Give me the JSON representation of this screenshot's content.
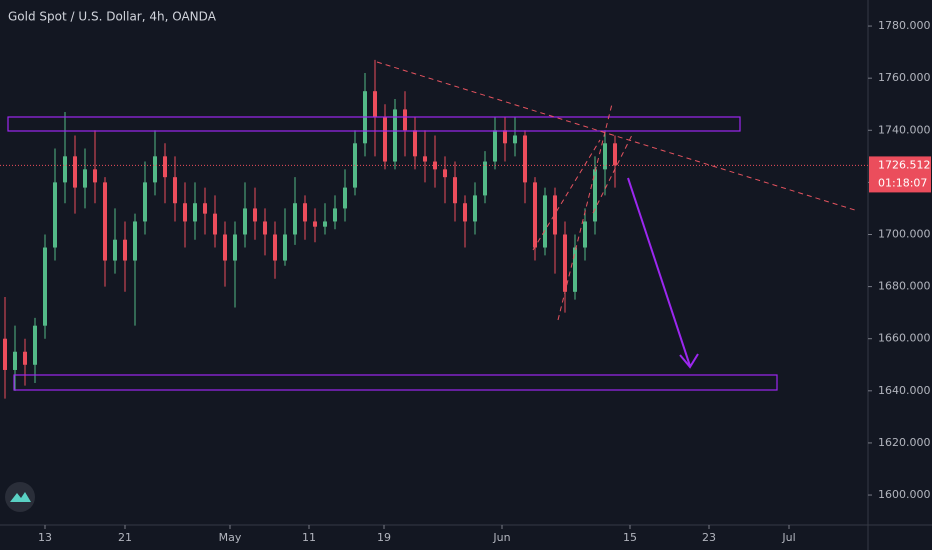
{
  "chart_data": {
    "type": "candlestick",
    "title": "Gold Spot / U.S. Dollar, 4h, OANDA",
    "up_color": "#53b987",
    "down_color": "#eb4d5c",
    "open": [
      1660,
      1648,
      1655,
      1650,
      1665,
      1695,
      1720,
      1730,
      1718,
      1725,
      1720,
      1690,
      1698,
      1690,
      1705,
      1720,
      1730,
      1722,
      1712,
      1705,
      1712,
      1708,
      1700,
      1690,
      1700,
      1710,
      1705,
      1700,
      1690,
      1700,
      1712,
      1705,
      1703,
      1705,
      1710,
      1718,
      1735,
      1755,
      1745,
      1728,
      1748,
      1740,
      1730,
      1728,
      1725,
      1722,
      1712,
      1705,
      1715,
      1728,
      1740,
      1735,
      1738,
      1720,
      1695,
      1715,
      1700,
      1678,
      1695,
      1705,
      1725,
      1735
    ],
    "high": [
      1676,
      1665,
      1660,
      1668,
      1700,
      1733,
      1747,
      1738,
      1733,
      1740,
      1722,
      1710,
      1705,
      1708,
      1728,
      1740,
      1735,
      1730,
      1720,
      1720,
      1718,
      1715,
      1705,
      1705,
      1720,
      1718,
      1710,
      1705,
      1710,
      1722,
      1715,
      1710,
      1712,
      1715,
      1725,
      1740,
      1762,
      1767,
      1750,
      1752,
      1755,
      1745,
      1740,
      1738,
      1730,
      1728,
      1715,
      1720,
      1732,
      1745,
      1745,
      1745,
      1740,
      1722,
      1718,
      1718,
      1705,
      1700,
      1710,
      1730,
      1740,
      1738
    ],
    "low": [
      1637,
      1640,
      1642,
      1643,
      1660,
      1690,
      1712,
      1708,
      1710,
      1712,
      1680,
      1685,
      1678,
      1665,
      1700,
      1715,
      1712,
      1705,
      1695,
      1698,
      1700,
      1695,
      1680,
      1672,
      1695,
      1698,
      1692,
      1683,
      1688,
      1696,
      1698,
      1697,
      1700,
      1702,
      1705,
      1715,
      1730,
      1730,
      1725,
      1725,
      1730,
      1725,
      1720,
      1718,
      1712,
      1705,
      1695,
      1700,
      1712,
      1725,
      1728,
      1730,
      1712,
      1690,
      1692,
      1685,
      1670,
      1675,
      1690,
      1700,
      1715,
      1718
    ],
    "close": [
      1648,
      1655,
      1650,
      1665,
      1695,
      1720,
      1730,
      1718,
      1725,
      1720,
      1690,
      1698,
      1690,
      1705,
      1720,
      1730,
      1722,
      1712,
      1705,
      1712,
      1708,
      1700,
      1690,
      1700,
      1710,
      1705,
      1700,
      1690,
      1700,
      1712,
      1705,
      1703,
      1705,
      1710,
      1718,
      1735,
      1755,
      1745,
      1728,
      1748,
      1740,
      1730,
      1728,
      1725,
      1722,
      1712,
      1705,
      1715,
      1728,
      1740,
      1735,
      1738,
      1720,
      1695,
      1715,
      1700,
      1678,
      1695,
      1705,
      1725,
      1735,
      1726.512
    ],
    "last_price": 1726.512,
    "countdown": "01:18:07",
    "xlim": [
      -0.5,
      86.3
    ],
    "xticks": [
      {
        "value": 4,
        "label": "13"
      },
      {
        "value": 12,
        "label": "21"
      },
      {
        "value": 22.5,
        "label": "May"
      },
      {
        "value": 30.4,
        "label": "11"
      },
      {
        "value": 37.9,
        "label": "19"
      },
      {
        "value": 49.7,
        "label": "Jun"
      },
      {
        "value": 62.5,
        "label": "15"
      },
      {
        "value": 70.4,
        "label": "23"
      },
      {
        "value": 78.4,
        "label": "Jul"
      }
    ],
    "ylim": [
      1588.5,
      1790
    ],
    "yticks": [
      {
        "value": 1600,
        "label": "1600.000"
      },
      {
        "value": 1620,
        "label": "1620.000"
      },
      {
        "value": 1640,
        "label": "1640.000"
      },
      {
        "value": 1660,
        "label": "1660.000"
      },
      {
        "value": 1680,
        "label": "1680.000"
      },
      {
        "value": 1700,
        "label": "1700.000"
      },
      {
        "value": 1720,
        "label": "1720.000"
      },
      {
        "value": 1740,
        "label": "1740.000"
      },
      {
        "value": 1760,
        "label": "1760.000"
      },
      {
        "value": 1780,
        "label": "1780.000"
      }
    ]
  }
}
